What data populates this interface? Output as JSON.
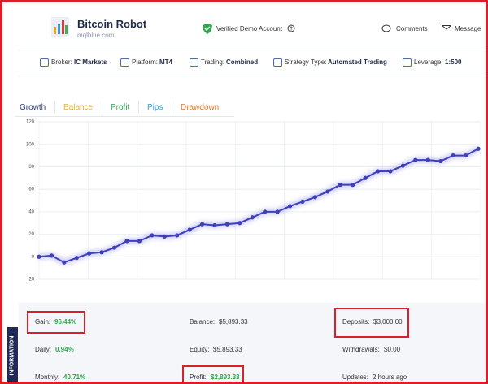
{
  "header": {
    "title": "Bitcoin Robot",
    "site": "mqlblue.com",
    "verified": "Verified Demo Account",
    "comments": "Comments",
    "message": "Message"
  },
  "info_bar": [
    {
      "label": "Broker:",
      "value": "IC Markets"
    },
    {
      "label": "Platform:",
      "value": "MT4"
    },
    {
      "label": "Trading:",
      "value": "Combined"
    },
    {
      "label": "Strategy Type:",
      "value": "Automated Trading"
    },
    {
      "label": "Leverage:",
      "value": "1:500"
    }
  ],
  "tabs": [
    "Growth",
    "Balance",
    "Profit",
    "Pips",
    "Drawdown"
  ],
  "chart_data": {
    "type": "line",
    "color": "#3f3fb8",
    "values": [
      0,
      1,
      -5,
      -1,
      3,
      4,
      8,
      14,
      14,
      19,
      18,
      19,
      24,
      29,
      28,
      29,
      30,
      35,
      40,
      40,
      45,
      49,
      53,
      58,
      64,
      64,
      70,
      76,
      76,
      81,
      86,
      86,
      85,
      90,
      90,
      96
    ],
    "ylim": [
      -20,
      120
    ],
    "yticks": [
      -20,
      0,
      20,
      40,
      60,
      80,
      100,
      120
    ],
    "grid": true
  },
  "side_tab": "INFORMATION",
  "stats": [
    [
      {
        "label": "Gain:",
        "value": "96.44%"
      },
      {
        "label": "Balance:",
        "value": "$5,893.33"
      },
      {
        "label": "Deposits:",
        "value": "$3,000.00"
      }
    ],
    [
      {
        "label": "Daily:",
        "value": "0.94%"
      },
      {
        "label": "Equity:",
        "value": "$5,893.33"
      },
      {
        "label": "Withdrawals:",
        "value": "$0.00"
      }
    ],
    [
      {
        "label": "Monthly:",
        "value": "40.71%"
      },
      {
        "label": "Profit:",
        "value": "$2,893.33"
      },
      {
        "label": "Updates:",
        "value": "2 hours ago"
      }
    ]
  ]
}
